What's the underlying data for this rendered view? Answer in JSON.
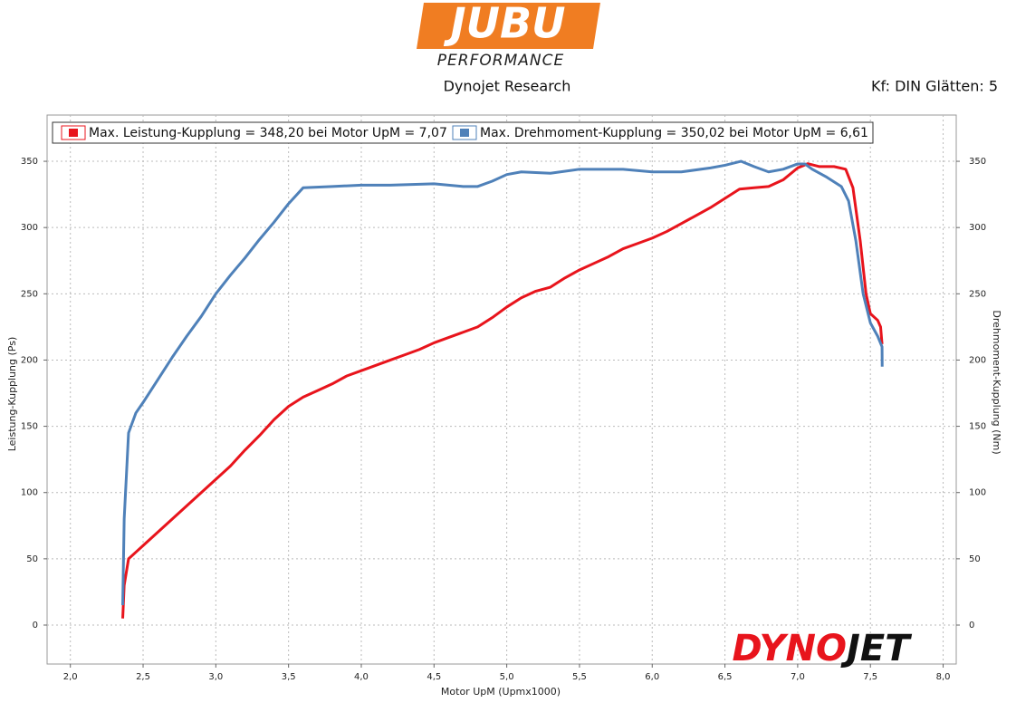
{
  "header": {
    "logo": "JUBU",
    "logo_sub": "PERFORMANCE",
    "subtitle": "Dynojet Research",
    "settings": "Kf: DIN Glätten: 5"
  },
  "footer_logo": {
    "first": "DYNO",
    "second": "JET"
  },
  "chart_data": {
    "type": "line",
    "x_label": "Motor UpM (Upmx1000)",
    "y_label": "Leistung-Kupplung (Ps)",
    "y2_label": "Drehmoment-Kupplung (Nm)",
    "xlim": [
      1.84,
      8.09
    ],
    "ylim": [
      -29.4,
      384.9
    ],
    "y2lim": [
      -29.4,
      384.9
    ],
    "xticks": [
      {
        "value": 2,
        "label": "2,0"
      },
      {
        "value": 2.5,
        "label": "2,5"
      },
      {
        "value": 3,
        "label": "3,0"
      },
      {
        "value": 3.5,
        "label": "3,5"
      },
      {
        "value": 4,
        "label": "4,0"
      },
      {
        "value": 4.5,
        "label": "4,5"
      },
      {
        "value": 5,
        "label": "5,0"
      },
      {
        "value": 5.5,
        "label": "5,5"
      },
      {
        "value": 6,
        "label": "6,0"
      },
      {
        "value": 6.5,
        "label": "6,5"
      },
      {
        "value": 7,
        "label": "7,0"
      },
      {
        "value": 7.5,
        "label": "7,5"
      },
      {
        "value": 8,
        "label": "8,0"
      }
    ],
    "yticks": [
      0,
      50,
      100,
      150,
      200,
      250,
      300,
      350
    ],
    "y2ticks": [
      0,
      50,
      100,
      150,
      200,
      250,
      300,
      350
    ],
    "grid": true,
    "series": [
      {
        "name": "Max. Leistung-Kupplung = 348,20 bei Motor UpM = 7,07",
        "color": "#e8141c",
        "axis": "y",
        "x": [
          2.36,
          2.37,
          2.4,
          2.45,
          2.5,
          2.6,
          2.7,
          2.8,
          2.9,
          3.0,
          3.1,
          3.2,
          3.3,
          3.4,
          3.5,
          3.6,
          3.7,
          3.8,
          3.9,
          4.0,
          4.1,
          4.2,
          4.3,
          4.4,
          4.5,
          4.6,
          4.7,
          4.8,
          4.9,
          5.0,
          5.1,
          5.2,
          5.3,
          5.4,
          5.5,
          5.6,
          5.7,
          5.8,
          5.9,
          6.0,
          6.1,
          6.2,
          6.3,
          6.4,
          6.5,
          6.6,
          6.7,
          6.8,
          6.9,
          7.0,
          7.07,
          7.15,
          7.25,
          7.33,
          7.38,
          7.43,
          7.47,
          7.5,
          7.55,
          7.57,
          7.58
        ],
        "values": [
          5,
          30,
          50,
          55,
          60,
          70,
          80,
          90,
          100,
          110,
          120,
          132,
          143,
          155,
          165,
          172,
          177,
          182,
          188,
          192,
          196,
          200,
          204,
          208,
          213,
          217,
          221,
          225,
          232,
          240,
          247,
          252,
          255,
          262,
          268,
          273,
          278,
          284,
          288,
          292,
          297,
          303,
          309,
          315,
          322,
          329,
          330,
          331,
          336,
          345,
          348.2,
          346,
          346,
          344,
          330,
          290,
          250,
          235,
          230,
          225,
          212
        ]
      },
      {
        "name": "Max. Drehmoment-Kupplung = 350,02 bei Motor UpM = 6,61",
        "color": "#4f81b9",
        "axis": "y2",
        "x": [
          2.36,
          2.37,
          2.4,
          2.45,
          2.5,
          2.6,
          2.7,
          2.8,
          2.9,
          3.0,
          3.1,
          3.2,
          3.3,
          3.4,
          3.5,
          3.6,
          3.8,
          4.0,
          4.2,
          4.5,
          4.7,
          4.8,
          4.9,
          5.0,
          5.1,
          5.3,
          5.5,
          5.8,
          6.0,
          6.2,
          6.4,
          6.5,
          6.61,
          6.7,
          6.8,
          6.9,
          7.0,
          7.05,
          7.1,
          7.2,
          7.3,
          7.35,
          7.4,
          7.45,
          7.5,
          7.55,
          7.58,
          7.581
        ],
        "values": [
          15,
          80,
          145,
          160,
          168,
          185,
          202,
          218,
          233,
          250,
          264,
          277,
          291,
          304,
          318,
          330,
          331,
          332,
          332,
          333,
          331,
          331,
          335,
          340,
          342,
          341,
          344,
          344,
          342,
          342,
          345,
          347,
          350.02,
          346,
          342,
          344,
          348,
          348,
          344,
          338,
          331,
          320,
          290,
          250,
          228,
          218,
          210,
          195
        ]
      }
    ]
  }
}
